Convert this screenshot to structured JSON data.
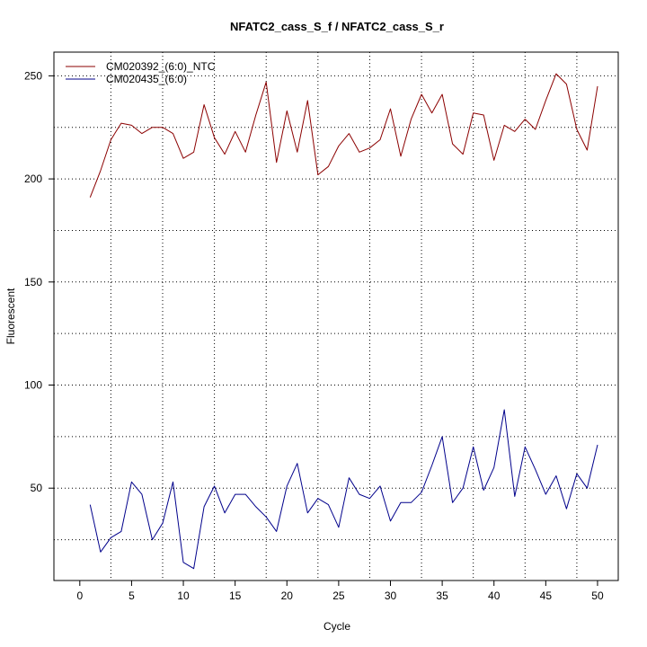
{
  "chart_data": {
    "type": "line",
    "title": "NFATC2_cass_S_f / NFATC2_cass_S_r",
    "xlabel": "Cycle",
    "ylabel": "Fluorescent",
    "xlim": [
      -2.5,
      52.0
    ],
    "ylim": [
      5.2,
      261.5
    ],
    "xticks": [
      0,
      5,
      10,
      15,
      20,
      25,
      30,
      35,
      40,
      45,
      50
    ],
    "yticks": [
      50,
      100,
      150,
      200,
      250
    ],
    "grid": true,
    "vgrid_dotted_x": [
      3,
      8,
      13,
      18,
      23,
      28,
      33,
      38,
      43,
      48
    ],
    "hgrid_dotted_y": [
      25,
      50,
      75,
      100,
      125,
      150,
      175,
      200,
      225,
      250
    ],
    "legend": "top-left",
    "x": [
      1,
      2,
      3,
      4,
      5,
      6,
      7,
      8,
      9,
      10,
      11,
      12,
      13,
      14,
      15,
      16,
      17,
      18,
      19,
      20,
      21,
      22,
      23,
      24,
      25,
      26,
      27,
      28,
      29,
      30,
      31,
      32,
      33,
      34,
      35,
      36,
      37,
      38,
      39,
      40,
      41,
      42,
      43,
      44,
      45,
      46,
      47,
      48,
      49,
      50
    ],
    "series": [
      {
        "name": "CM020392_(6:0)_NTC",
        "color": "#8b0000",
        "values": [
          191,
          204,
          219,
          227,
          226,
          222,
          225,
          225,
          222,
          210,
          213,
          236,
          220,
          212,
          223,
          213,
          231,
          247,
          208,
          233,
          213,
          238,
          202,
          206,
          216,
          222,
          213,
          215,
          219,
          234,
          211,
          229,
          241,
          232,
          241,
          217,
          212,
          232,
          231,
          209,
          226,
          223,
          229,
          224,
          238,
          251,
          246,
          224,
          214,
          245
        ]
      },
      {
        "name": "CM020435_(6:0)",
        "color": "#00008b",
        "values": [
          42,
          19,
          26,
          29,
          53,
          47,
          25,
          33,
          53,
          14,
          11,
          41,
          51,
          38,
          47,
          47,
          41,
          36,
          29,
          51,
          62,
          38,
          45,
          42,
          31,
          55,
          47,
          45,
          51,
          34,
          43,
          43,
          48,
          61,
          75,
          43,
          50,
          70,
          49,
          60,
          88,
          46,
          70,
          59,
          47,
          56,
          40,
          57,
          50,
          71
        ]
      }
    ]
  }
}
